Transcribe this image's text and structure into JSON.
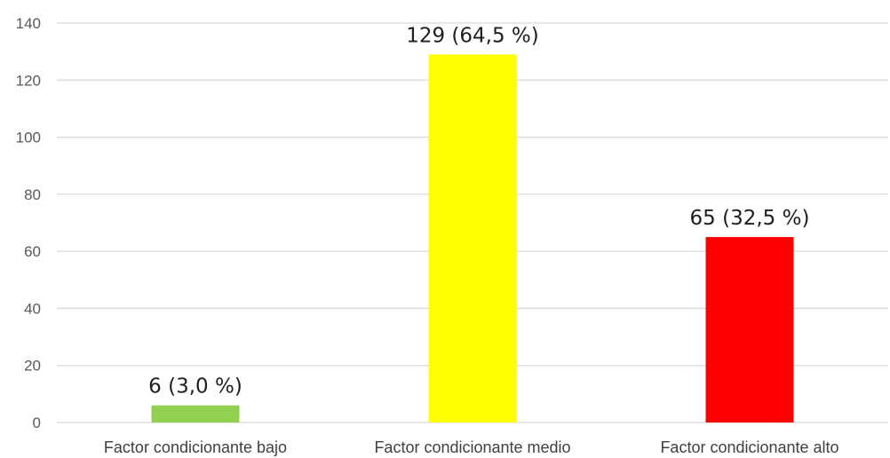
{
  "chart_data": {
    "type": "bar",
    "categories": [
      "Factor condicionante bajo",
      "Factor condicionante medio",
      "Factor condicionante alto"
    ],
    "values": [
      6,
      129,
      65
    ],
    "data_labels": [
      "6 (3,0 %)",
      "129 (64,5 %)",
      "65 (32,5 %)"
    ],
    "colors": [
      "#92d050",
      "#ffff00",
      "#ff0000"
    ],
    "ylim": [
      0,
      140
    ],
    "yticks": [
      "0",
      "20",
      "40",
      "60",
      "80",
      "100",
      "120",
      "140"
    ],
    "grid": true,
    "legend": "none"
  }
}
